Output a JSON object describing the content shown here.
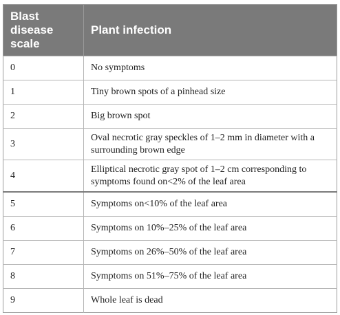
{
  "table": {
    "headers": [
      [
        "Blast",
        "disease",
        "scale"
      ],
      [
        "Plant infection"
      ]
    ],
    "rows": [
      {
        "scale": "0",
        "infection": "No symptoms"
      },
      {
        "scale": "1",
        "infection": "Tiny brown spots of a pinhead size"
      },
      {
        "scale": "2",
        "infection": "Big brown spot"
      },
      {
        "scale": "3",
        "infection": "Oval necrotic gray speckles of 1–2 mm in diameter with a surrounding brown edge"
      },
      {
        "scale": "4",
        "infection": "Elliptical necrotic gray spot of 1–2 cm corresponding to symptoms found on<2% of the leaf area"
      },
      {
        "scale": "5",
        "infection": "Symptoms on<10% of the leaf area"
      },
      {
        "scale": "6",
        "infection": "Symptoms on 10%–25% of the leaf area"
      },
      {
        "scale": "7",
        "infection": "Symptoms on 26%–50% of the leaf area"
      },
      {
        "scale": "8",
        "infection": "Symptoms on 51%–75% of the leaf area"
      },
      {
        "scale": "9",
        "infection": "Whole leaf is dead"
      }
    ]
  }
}
